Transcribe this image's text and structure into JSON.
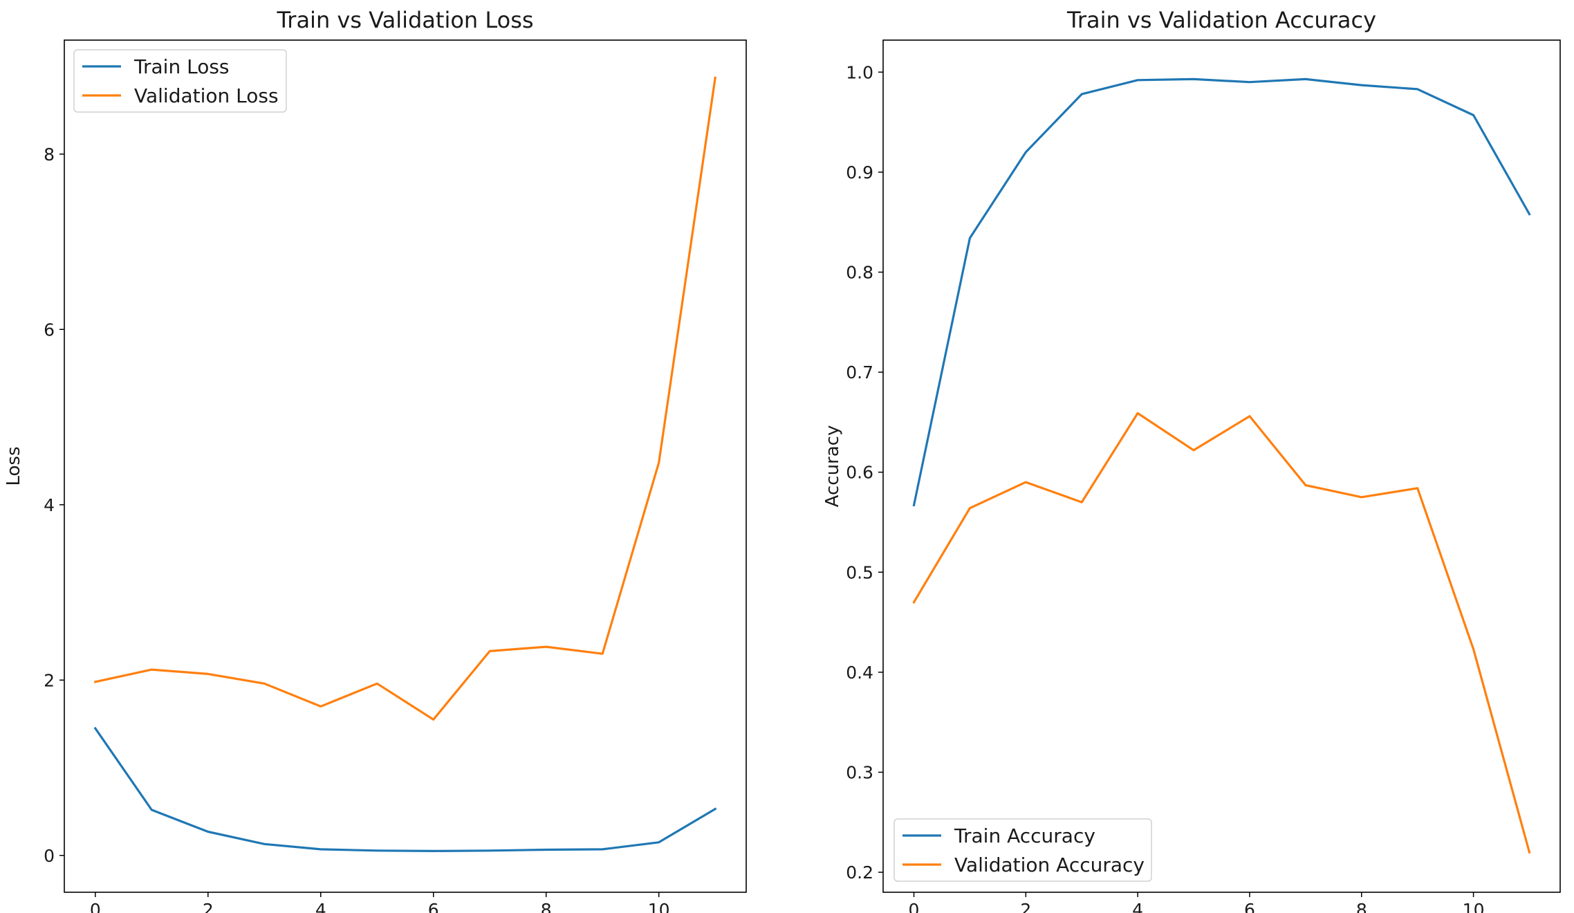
{
  "chart_data": [
    {
      "type": "line",
      "title": "Train vs Validation Loss",
      "xlabel": "",
      "ylabel": "Loss",
      "x": [
        0,
        1,
        2,
        3,
        4,
        5,
        6,
        7,
        8,
        9,
        10,
        11
      ],
      "xlim": [
        -0.55,
        11.55
      ],
      "ylim": [
        -0.42,
        9.3
      ],
      "xticks": [
        0,
        2,
        4,
        6,
        8,
        10
      ],
      "yticks": [
        0,
        2,
        4,
        6,
        8
      ],
      "grid": false,
      "legend": "top-left",
      "series": [
        {
          "name": "Train Loss",
          "color": "#1f77b4",
          "values": [
            1.45,
            0.52,
            0.27,
            0.13,
            0.07,
            0.055,
            0.05,
            0.055,
            0.065,
            0.07,
            0.15,
            0.53
          ]
        },
        {
          "name": "Validation Loss",
          "color": "#ff7f0e",
          "values": [
            1.98,
            2.12,
            2.07,
            1.96,
            1.7,
            1.96,
            1.55,
            2.33,
            2.38,
            2.3,
            4.48,
            8.87
          ]
        }
      ]
    },
    {
      "type": "line",
      "title": "Train vs Validation Accuracy",
      "xlabel": "",
      "ylabel": "Accuracy",
      "x": [
        0,
        1,
        2,
        3,
        4,
        5,
        6,
        7,
        8,
        9,
        10,
        11
      ],
      "xlim": [
        -0.55,
        11.55
      ],
      "ylim": [
        0.18,
        1.032
      ],
      "xticks": [
        0,
        2,
        4,
        6,
        8,
        10
      ],
      "yticks": [
        0.2,
        0.3,
        0.4,
        0.5,
        0.6,
        0.7,
        0.8,
        0.9,
        1.0
      ],
      "yticklabels": [
        "0.2",
        "0.3",
        "0.4",
        "0.5",
        "0.6",
        "0.7",
        "0.8",
        "0.9",
        "1.0"
      ],
      "grid": false,
      "legend": "bottom-left",
      "series": [
        {
          "name": "Train Accuracy",
          "color": "#1f77b4",
          "values": [
            0.567,
            0.834,
            0.92,
            0.978,
            0.992,
            0.993,
            0.99,
            0.993,
            0.987,
            0.983,
            0.957,
            0.858
          ]
        },
        {
          "name": "Validation Accuracy",
          "color": "#ff7f0e",
          "values": [
            0.47,
            0.564,
            0.59,
            0.57,
            0.659,
            0.622,
            0.656,
            0.587,
            0.575,
            0.584,
            0.423,
            0.22
          ]
        }
      ]
    }
  ]
}
